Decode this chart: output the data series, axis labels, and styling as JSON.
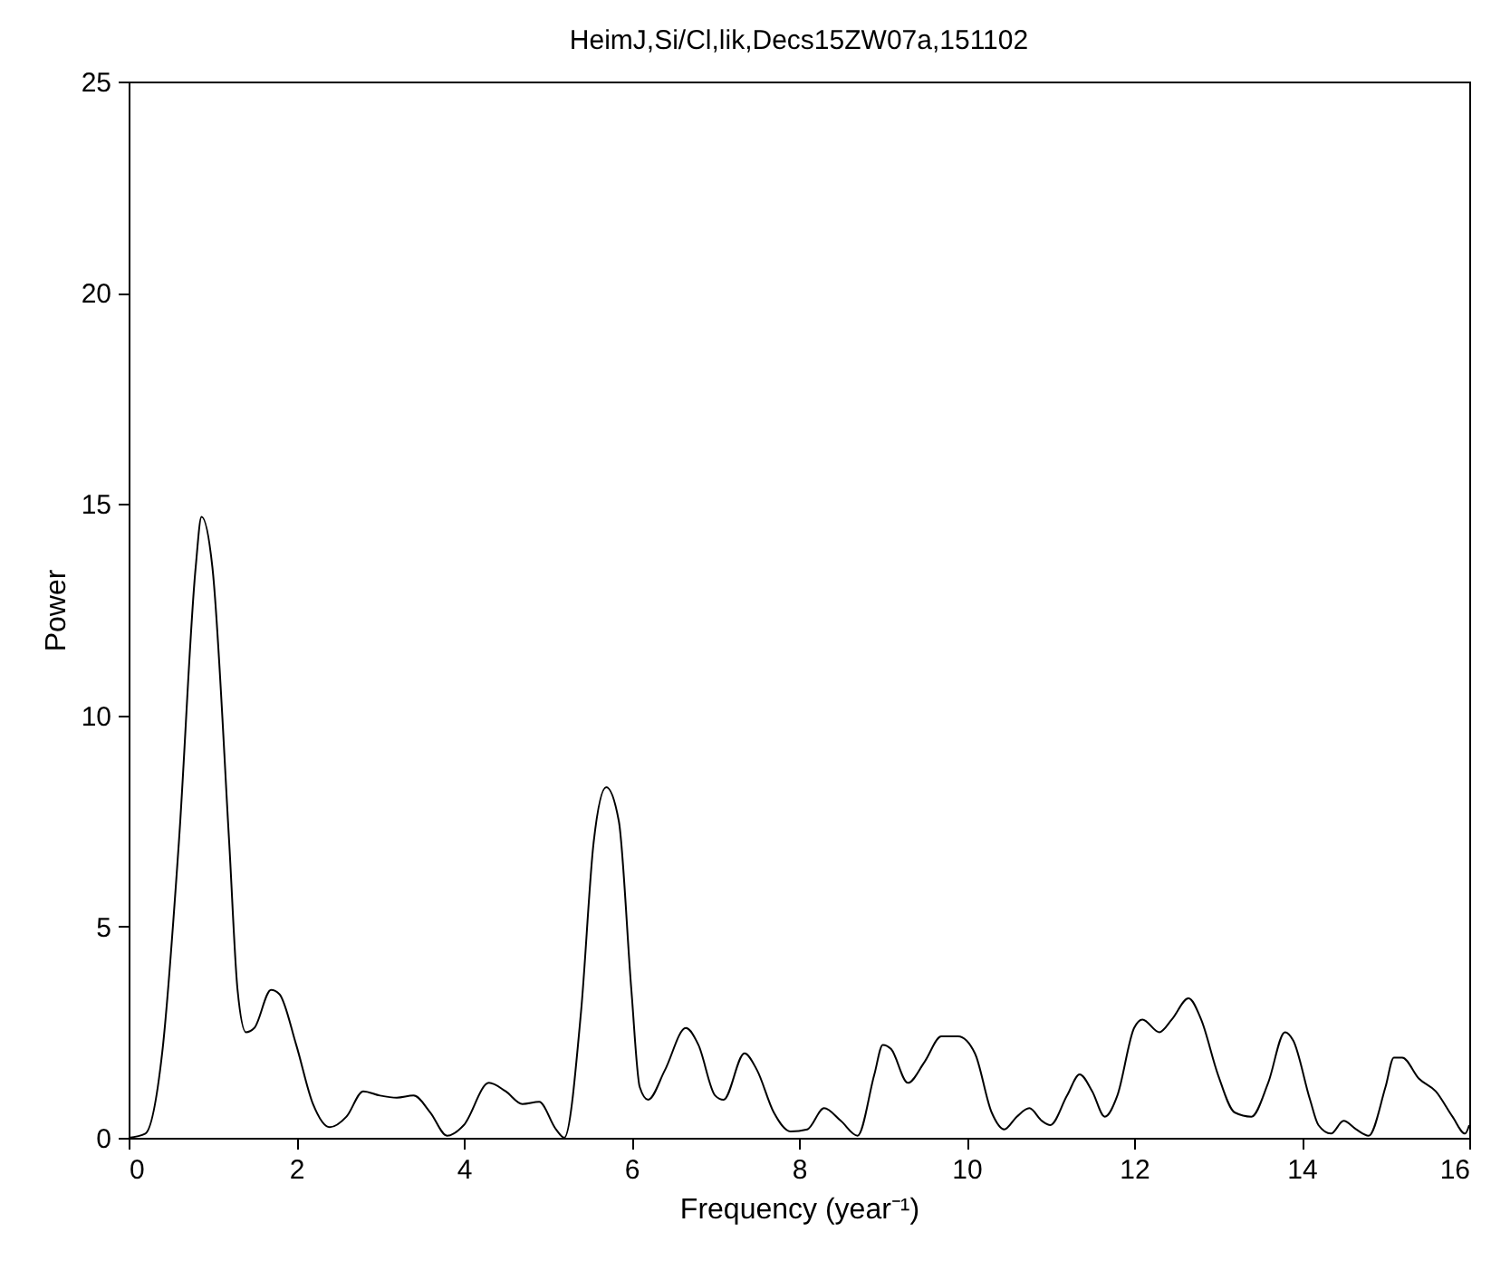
{
  "chart_data": {
    "type": "line",
    "title": "HeimJ,Si/Cl,lik,Decs15ZW07a,151102",
    "xlabel": "Frequency (year⁻¹)",
    "ylabel": "Power",
    "x": [
      0,
      0.2,
      0.4,
      0.6,
      0.8,
      0.87,
      1.0,
      1.2,
      1.3,
      1.4,
      1.5,
      1.7,
      1.8,
      2.0,
      2.2,
      2.4,
      2.6,
      2.8,
      3.0,
      3.2,
      3.4,
      3.6,
      3.8,
      4.0,
      4.3,
      4.5,
      4.7,
      4.9,
      5.1,
      5.2,
      5.4,
      5.55,
      5.7,
      5.85,
      6.0,
      6.1,
      6.2,
      6.4,
      6.65,
      6.8,
      7.0,
      7.1,
      7.35,
      7.5,
      7.7,
      7.9,
      8.1,
      8.3,
      8.5,
      8.7,
      8.9,
      9.0,
      9.1,
      9.3,
      9.5,
      9.7,
      9.9,
      10.1,
      10.3,
      10.45,
      10.6,
      10.75,
      10.9,
      11.0,
      11.2,
      11.35,
      11.5,
      11.65,
      11.8,
      12.0,
      12.1,
      12.3,
      12.45,
      12.65,
      12.8,
      13.0,
      13.2,
      13.4,
      13.6,
      13.8,
      13.9,
      14.1,
      14.2,
      14.35,
      14.5,
      14.65,
      14.8,
      15.0,
      15.1,
      15.2,
      15.4,
      15.6,
      15.8,
      15.95,
      16
    ],
    "series": [
      {
        "color": "#000000",
        "values": [
          0,
          0.1,
          2,
          7,
          13.5,
          14.7,
          13.5,
          7,
          3.5,
          2.5,
          2.6,
          3.5,
          3.4,
          2.2,
          0.8,
          0.25,
          0.5,
          1.1,
          1.0,
          0.95,
          1.0,
          0.6,
          0.05,
          0.3,
          1.3,
          1.1,
          0.8,
          0.85,
          0.2,
          0,
          3,
          7,
          8.3,
          7.5,
          3.5,
          1.2,
          0.9,
          1.6,
          2.6,
          2.2,
          1.0,
          0.9,
          2.0,
          1.6,
          0.6,
          0.15,
          0.2,
          0.7,
          0.4,
          0.05,
          1.5,
          2.2,
          2.1,
          1.3,
          1.8,
          2.4,
          2.4,
          2.0,
          0.6,
          0.2,
          0.5,
          0.7,
          0.4,
          0.3,
          1.0,
          1.5,
          1.1,
          0.5,
          1.0,
          2.6,
          2.8,
          2.5,
          2.8,
          3.3,
          2.8,
          1.5,
          0.6,
          0.5,
          1.3,
          2.5,
          2.3,
          0.9,
          0.3,
          0.1,
          0.4,
          0.2,
          0.05,
          1.2,
          1.9,
          1.9,
          1.4,
          1.1,
          0.5,
          0.1,
          0.3
        ]
      }
    ],
    "xlim": [
      0,
      16
    ],
    "xticks": [
      0,
      2,
      4,
      6,
      8,
      10,
      12,
      14,
      16
    ],
    "ylim": [
      0,
      25
    ],
    "yticks": [
      0,
      5,
      10,
      15,
      20,
      25
    ],
    "grid": false
  }
}
